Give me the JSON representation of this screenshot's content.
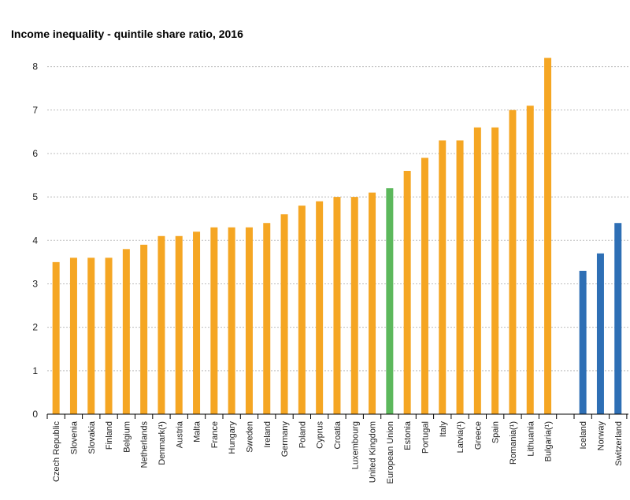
{
  "chart_data": {
    "type": "bar",
    "title": "Income inequality  - quintile share ratio, 2016",
    "xlabel": "",
    "ylabel": "",
    "ylim": [
      0,
      8.5
    ],
    "yticks": [
      0,
      1,
      2,
      3,
      4,
      5,
      6,
      7,
      8
    ],
    "grid": true,
    "legend": "none",
    "colors": {
      "member": "#f5a623",
      "eu": "#5cb85c",
      "non_eu": "#2e6fb5",
      "axis": "#000000",
      "grid": "#bdbdbd"
    },
    "categories": [
      "Czech Republic",
      "Slovenia",
      "Slovakia",
      "Finland",
      "Belgium",
      "Netherlands",
      "Denmark(¹)",
      "Austria",
      "Malta",
      "France",
      "Hungary",
      "Sweden",
      "Ireland",
      "Germany",
      "Poland",
      "Cyprus",
      "Croatia",
      "Luxembourg",
      "United Kingdom",
      "European Union",
      "Estonia",
      "Portugal",
      "Italy",
      "Latvia(¹)",
      "Greece",
      "Spain",
      "Romania(¹)",
      "Lithuania",
      "Bulgaria(¹)",
      "Iceland",
      "Norway",
      "Switzerland"
    ],
    "values": [
      3.5,
      3.6,
      3.6,
      3.6,
      3.8,
      3.9,
      4.1,
      4.1,
      4.2,
      4.3,
      4.3,
      4.3,
      4.4,
      4.6,
      4.8,
      4.9,
      5.0,
      5.0,
      5.1,
      5.2,
      5.6,
      5.9,
      6.3,
      6.3,
      6.6,
      6.6,
      7.0,
      7.1,
      8.2,
      3.3,
      3.7,
      4.4
    ],
    "groups": [
      "member",
      "member",
      "member",
      "member",
      "member",
      "member",
      "member",
      "member",
      "member",
      "member",
      "member",
      "member",
      "member",
      "member",
      "member",
      "member",
      "member",
      "member",
      "member",
      "eu",
      "member",
      "member",
      "member",
      "member",
      "member",
      "member",
      "member",
      "member",
      "member",
      "non_eu",
      "non_eu",
      "non_eu"
    ]
  }
}
